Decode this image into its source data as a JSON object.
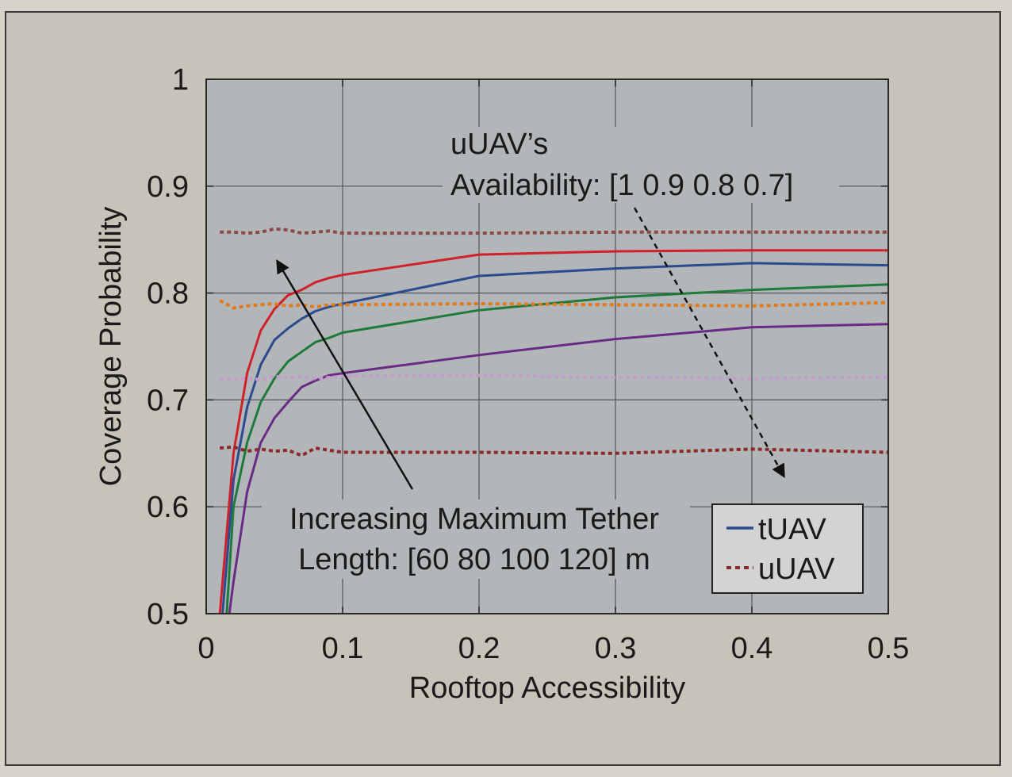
{
  "chart_data": {
    "type": "line",
    "title": "",
    "xlabel": "Rooftop Accessibility",
    "ylabel": "Coverage Probability",
    "xlim": [
      0,
      0.5
    ],
    "ylim": [
      0.5,
      1
    ],
    "xticks": [
      0,
      0.1,
      0.2,
      0.3,
      0.4,
      0.5
    ],
    "xtick_labels": [
      "0",
      "0.1",
      "0.2",
      "0.3",
      "0.4",
      "0.5"
    ],
    "yticks": [
      0.5,
      0.6,
      0.7,
      0.8,
      0.9,
      1
    ],
    "ytick_labels": [
      "0.5",
      "0.6",
      "0.7",
      "0.8",
      "0.9",
      "1"
    ],
    "grid": true,
    "legend_position": "bottom-right",
    "legend": [
      {
        "label": "tUAV",
        "style": "solid",
        "color": "#2b4a8f"
      },
      {
        "label": "uUAV",
        "style": "dotted",
        "color": "#8b2a2a"
      }
    ],
    "annotations": {
      "availability_line1": "uUAV’s",
      "availability_line2": "Availability: [1 0.9 0.8 0.7]",
      "tether_line1": "Increasing Maximum Tether",
      "tether_line2": "Length: [60 80 100 120] m"
    },
    "series": [
      {
        "group": "tUAV",
        "style": "solid",
        "color": "#d0202a",
        "x": [
          0.01,
          0.02,
          0.03,
          0.04,
          0.05,
          0.06,
          0.07,
          0.08,
          0.09,
          0.1,
          0.2,
          0.3,
          0.4,
          0.5
        ],
        "y": [
          0.5,
          0.65,
          0.725,
          0.765,
          0.785,
          0.798,
          0.803,
          0.81,
          0.814,
          0.817,
          0.836,
          0.839,
          0.84,
          0.84
        ]
      },
      {
        "group": "tUAV",
        "style": "solid",
        "color": "#2b4a8f",
        "x": [
          0.012,
          0.02,
          0.03,
          0.04,
          0.05,
          0.06,
          0.07,
          0.08,
          0.09,
          0.1,
          0.2,
          0.3,
          0.4,
          0.5
        ],
        "y": [
          0.5,
          0.625,
          0.693,
          0.733,
          0.756,
          0.767,
          0.776,
          0.783,
          0.787,
          0.79,
          0.816,
          0.823,
          0.828,
          0.826
        ]
      },
      {
        "group": "tUAV",
        "style": "solid",
        "color": "#1e7a3a",
        "x": [
          0.015,
          0.02,
          0.03,
          0.04,
          0.05,
          0.06,
          0.07,
          0.08,
          0.09,
          0.1,
          0.2,
          0.3,
          0.4,
          0.5
        ],
        "y": [
          0.5,
          0.6,
          0.66,
          0.698,
          0.72,
          0.736,
          0.745,
          0.754,
          0.758,
          0.763,
          0.784,
          0.796,
          0.803,
          0.808
        ]
      },
      {
        "group": "tUAV",
        "style": "solid",
        "color": "#6a2a86",
        "x": [
          0.017,
          0.02,
          0.03,
          0.04,
          0.05,
          0.06,
          0.07,
          0.08,
          0.09,
          0.1,
          0.2,
          0.3,
          0.4,
          0.5
        ],
        "y": [
          0.5,
          0.53,
          0.614,
          0.66,
          0.683,
          0.698,
          0.712,
          0.718,
          0.723,
          0.725,
          0.742,
          0.757,
          0.768,
          0.771
        ]
      },
      {
        "group": "uUAV",
        "style": "dotted",
        "color": "#8b4a4a",
        "x": [
          0.01,
          0.02,
          0.03,
          0.04,
          0.05,
          0.06,
          0.07,
          0.08,
          0.09,
          0.1,
          0.2,
          0.3,
          0.4,
          0.5
        ],
        "y": [
          0.857,
          0.857,
          0.856,
          0.857,
          0.86,
          0.859,
          0.856,
          0.857,
          0.858,
          0.856,
          0.856,
          0.857,
          0.857,
          0.857
        ]
      },
      {
        "group": "uUAV",
        "style": "dotted",
        "color": "#e07a1a",
        "x": [
          0.01,
          0.02,
          0.03,
          0.04,
          0.05,
          0.06,
          0.07,
          0.08,
          0.09,
          0.1,
          0.2,
          0.3,
          0.4,
          0.5
        ],
        "y": [
          0.793,
          0.786,
          0.788,
          0.789,
          0.79,
          0.788,
          0.789,
          0.787,
          0.789,
          0.789,
          0.79,
          0.789,
          0.788,
          0.791
        ]
      },
      {
        "group": "uUAV",
        "style": "dotted",
        "color": "#c49ccc",
        "x": [
          0.01,
          0.02,
          0.03,
          0.04,
          0.05,
          0.06,
          0.07,
          0.08,
          0.09,
          0.1,
          0.2,
          0.3,
          0.4,
          0.5
        ],
        "y": [
          0.72,
          0.719,
          0.72,
          0.719,
          0.722,
          0.721,
          0.722,
          0.72,
          0.721,
          0.722,
          0.723,
          0.721,
          0.72,
          0.721
        ]
      },
      {
        "group": "uUAV",
        "style": "dotted",
        "color": "#8b2a2a",
        "x": [
          0.01,
          0.02,
          0.03,
          0.04,
          0.05,
          0.06,
          0.07,
          0.08,
          0.09,
          0.1,
          0.2,
          0.3,
          0.4,
          0.5
        ],
        "y": [
          0.655,
          0.656,
          0.652,
          0.654,
          0.652,
          0.653,
          0.648,
          0.655,
          0.653,
          0.651,
          0.651,
          0.65,
          0.654,
          0.651
        ]
      }
    ]
  }
}
